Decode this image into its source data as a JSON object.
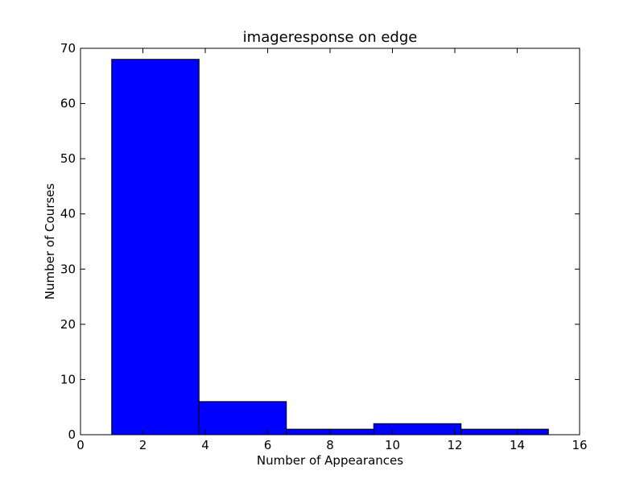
{
  "chart_data": {
    "type": "bar",
    "title": "imageresponse on edge",
    "xlabel": "Number of Appearances",
    "ylabel": "Number of Courses",
    "xlim": [
      0,
      16
    ],
    "ylim": [
      0,
      70
    ],
    "xticks": [
      0,
      2,
      4,
      6,
      8,
      10,
      12,
      14,
      16
    ],
    "yticks": [
      0,
      10,
      20,
      30,
      40,
      50,
      60,
      70
    ],
    "bins": [
      {
        "x0": 1.0,
        "x1": 3.8,
        "count": 68
      },
      {
        "x0": 3.8,
        "x1": 6.6,
        "count": 6
      },
      {
        "x0": 6.6,
        "x1": 9.4,
        "count": 1
      },
      {
        "x0": 9.4,
        "x1": 12.2,
        "count": 2
      },
      {
        "x0": 12.2,
        "x1": 15.0,
        "count": 1
      }
    ],
    "bar_color": "#0000ff",
    "edge_color": "#000000",
    "grid": false,
    "legend": "none"
  }
}
